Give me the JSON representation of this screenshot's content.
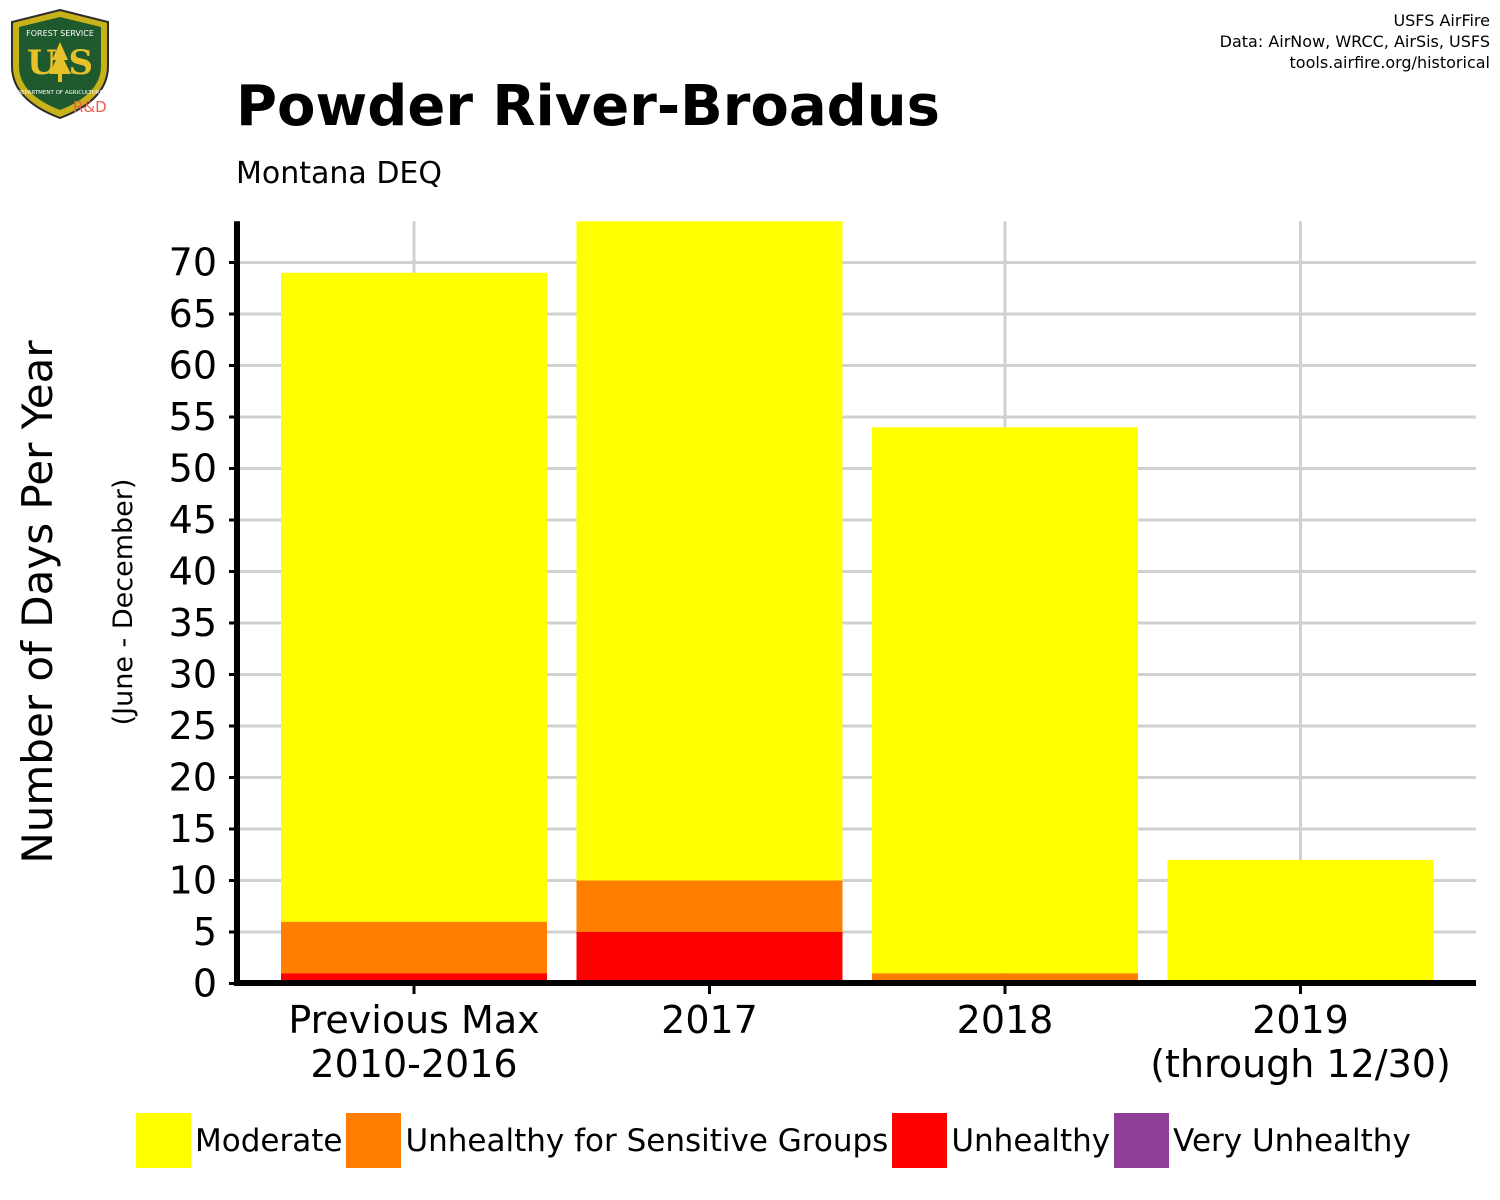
{
  "logo": {
    "top_text": "FOREST SERVICE",
    "main_text": "U S",
    "bottom_text": "DEPARTMENT OF AGRICULTURE",
    "badge": "R&D"
  },
  "credits": {
    "line1": "USFS AirFire",
    "line2": "Data: AirNow, WRCC, AirSis, USFS",
    "line3": "tools.airfire.org/historical"
  },
  "colors": {
    "moderate": "#ffff00",
    "usg": "#ff7e00",
    "unhealthy": "#ff0000",
    "very_unhealthy": "#8f3f97",
    "grid": "#d0d0d0",
    "axis": "#000000"
  },
  "chart_data": {
    "type": "bar",
    "stacked": true,
    "title": "Powder River-Broadus",
    "subtitle": "Montana DEQ",
    "ylabel": "Number of Days Per Year",
    "ylabel_sub": "(June - December)",
    "xlabel": "",
    "ylim": [
      0,
      74
    ],
    "yticks": [
      0,
      5,
      10,
      15,
      20,
      25,
      30,
      35,
      40,
      45,
      50,
      55,
      60,
      65,
      70
    ],
    "categories": [
      [
        "Previous Max",
        "2010-2016"
      ],
      [
        "2017"
      ],
      [
        "2018"
      ],
      [
        "2019",
        "(through 12/30)"
      ]
    ],
    "series": [
      {
        "name": "Very Unhealthy",
        "key": "very_unhealthy",
        "values": [
          0,
          0,
          0,
          0
        ]
      },
      {
        "name": "Unhealthy",
        "key": "unhealthy",
        "values": [
          1,
          5,
          0,
          0
        ]
      },
      {
        "name": "Unhealthy for Sensitive Groups",
        "key": "usg",
        "values": [
          5,
          5,
          1,
          0
        ]
      },
      {
        "name": "Moderate",
        "key": "moderate",
        "values": [
          63,
          64,
          53,
          12
        ]
      }
    ],
    "legend_order": [
      "Moderate",
      "Unhealthy for Sensitive Groups",
      "Unhealthy",
      "Very Unhealthy"
    ],
    "grid": true,
    "legend_position": "bottom"
  }
}
